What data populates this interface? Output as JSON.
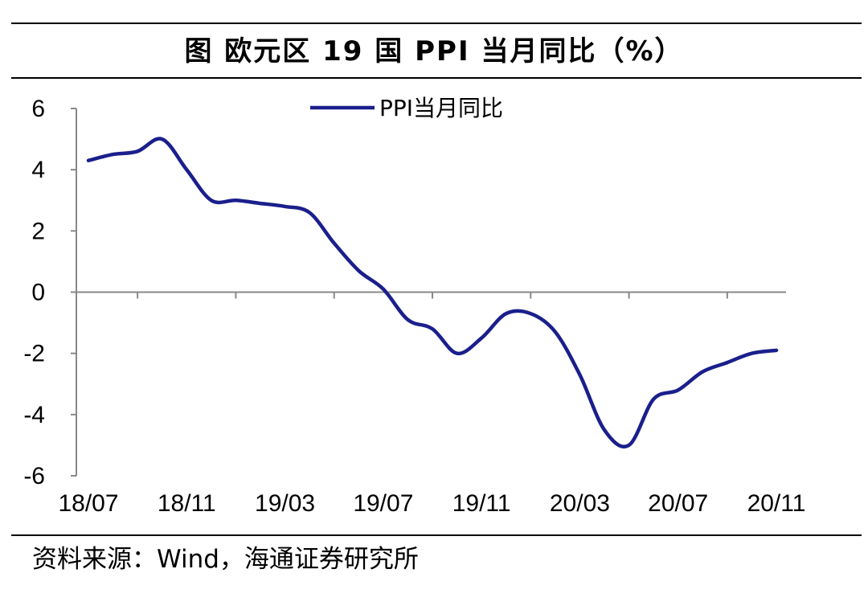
{
  "title": "图  欧元区 19 国 PPI 当月同比（%）",
  "source": "资料来源：Wind，海通证券研究所",
  "chart_data": {
    "type": "line",
    "title": "图  欧元区 19 国 PPI 当月同比（%）",
    "xlabel": "",
    "ylabel": "",
    "ylim": [
      -6,
      6
    ],
    "yticks": [
      6,
      4,
      2,
      0,
      -2,
      -4,
      -6
    ],
    "xtick_labels": [
      "18/07",
      "18/11",
      "19/03",
      "19/07",
      "19/11",
      "20/03",
      "20/07",
      "20/11"
    ],
    "legend_position": "top",
    "grid": false,
    "colors": {
      "series": "#1a1f8c"
    },
    "x": [
      "18/07",
      "18/08",
      "18/09",
      "18/10",
      "18/11",
      "18/12",
      "19/01",
      "19/02",
      "19/03",
      "19/04",
      "19/05",
      "19/06",
      "19/07",
      "19/08",
      "19/09",
      "19/10",
      "19/11",
      "19/12",
      "20/01",
      "20/02",
      "20/03",
      "20/04",
      "20/05",
      "20/06",
      "20/07",
      "20/08",
      "20/09",
      "20/10",
      "20/11"
    ],
    "series": [
      {
        "name": "PPI当月同比",
        "values": [
          4.3,
          4.5,
          4.6,
          5.0,
          4.0,
          3.0,
          3.0,
          2.9,
          2.8,
          2.6,
          1.6,
          0.7,
          0.1,
          -0.9,
          -1.2,
          -2.0,
          -1.5,
          -0.7,
          -0.7,
          -1.3,
          -2.7,
          -4.5,
          -5.0,
          -3.5,
          -3.2,
          -2.6,
          -2.3,
          -2.0,
          -1.9
        ]
      }
    ]
  }
}
